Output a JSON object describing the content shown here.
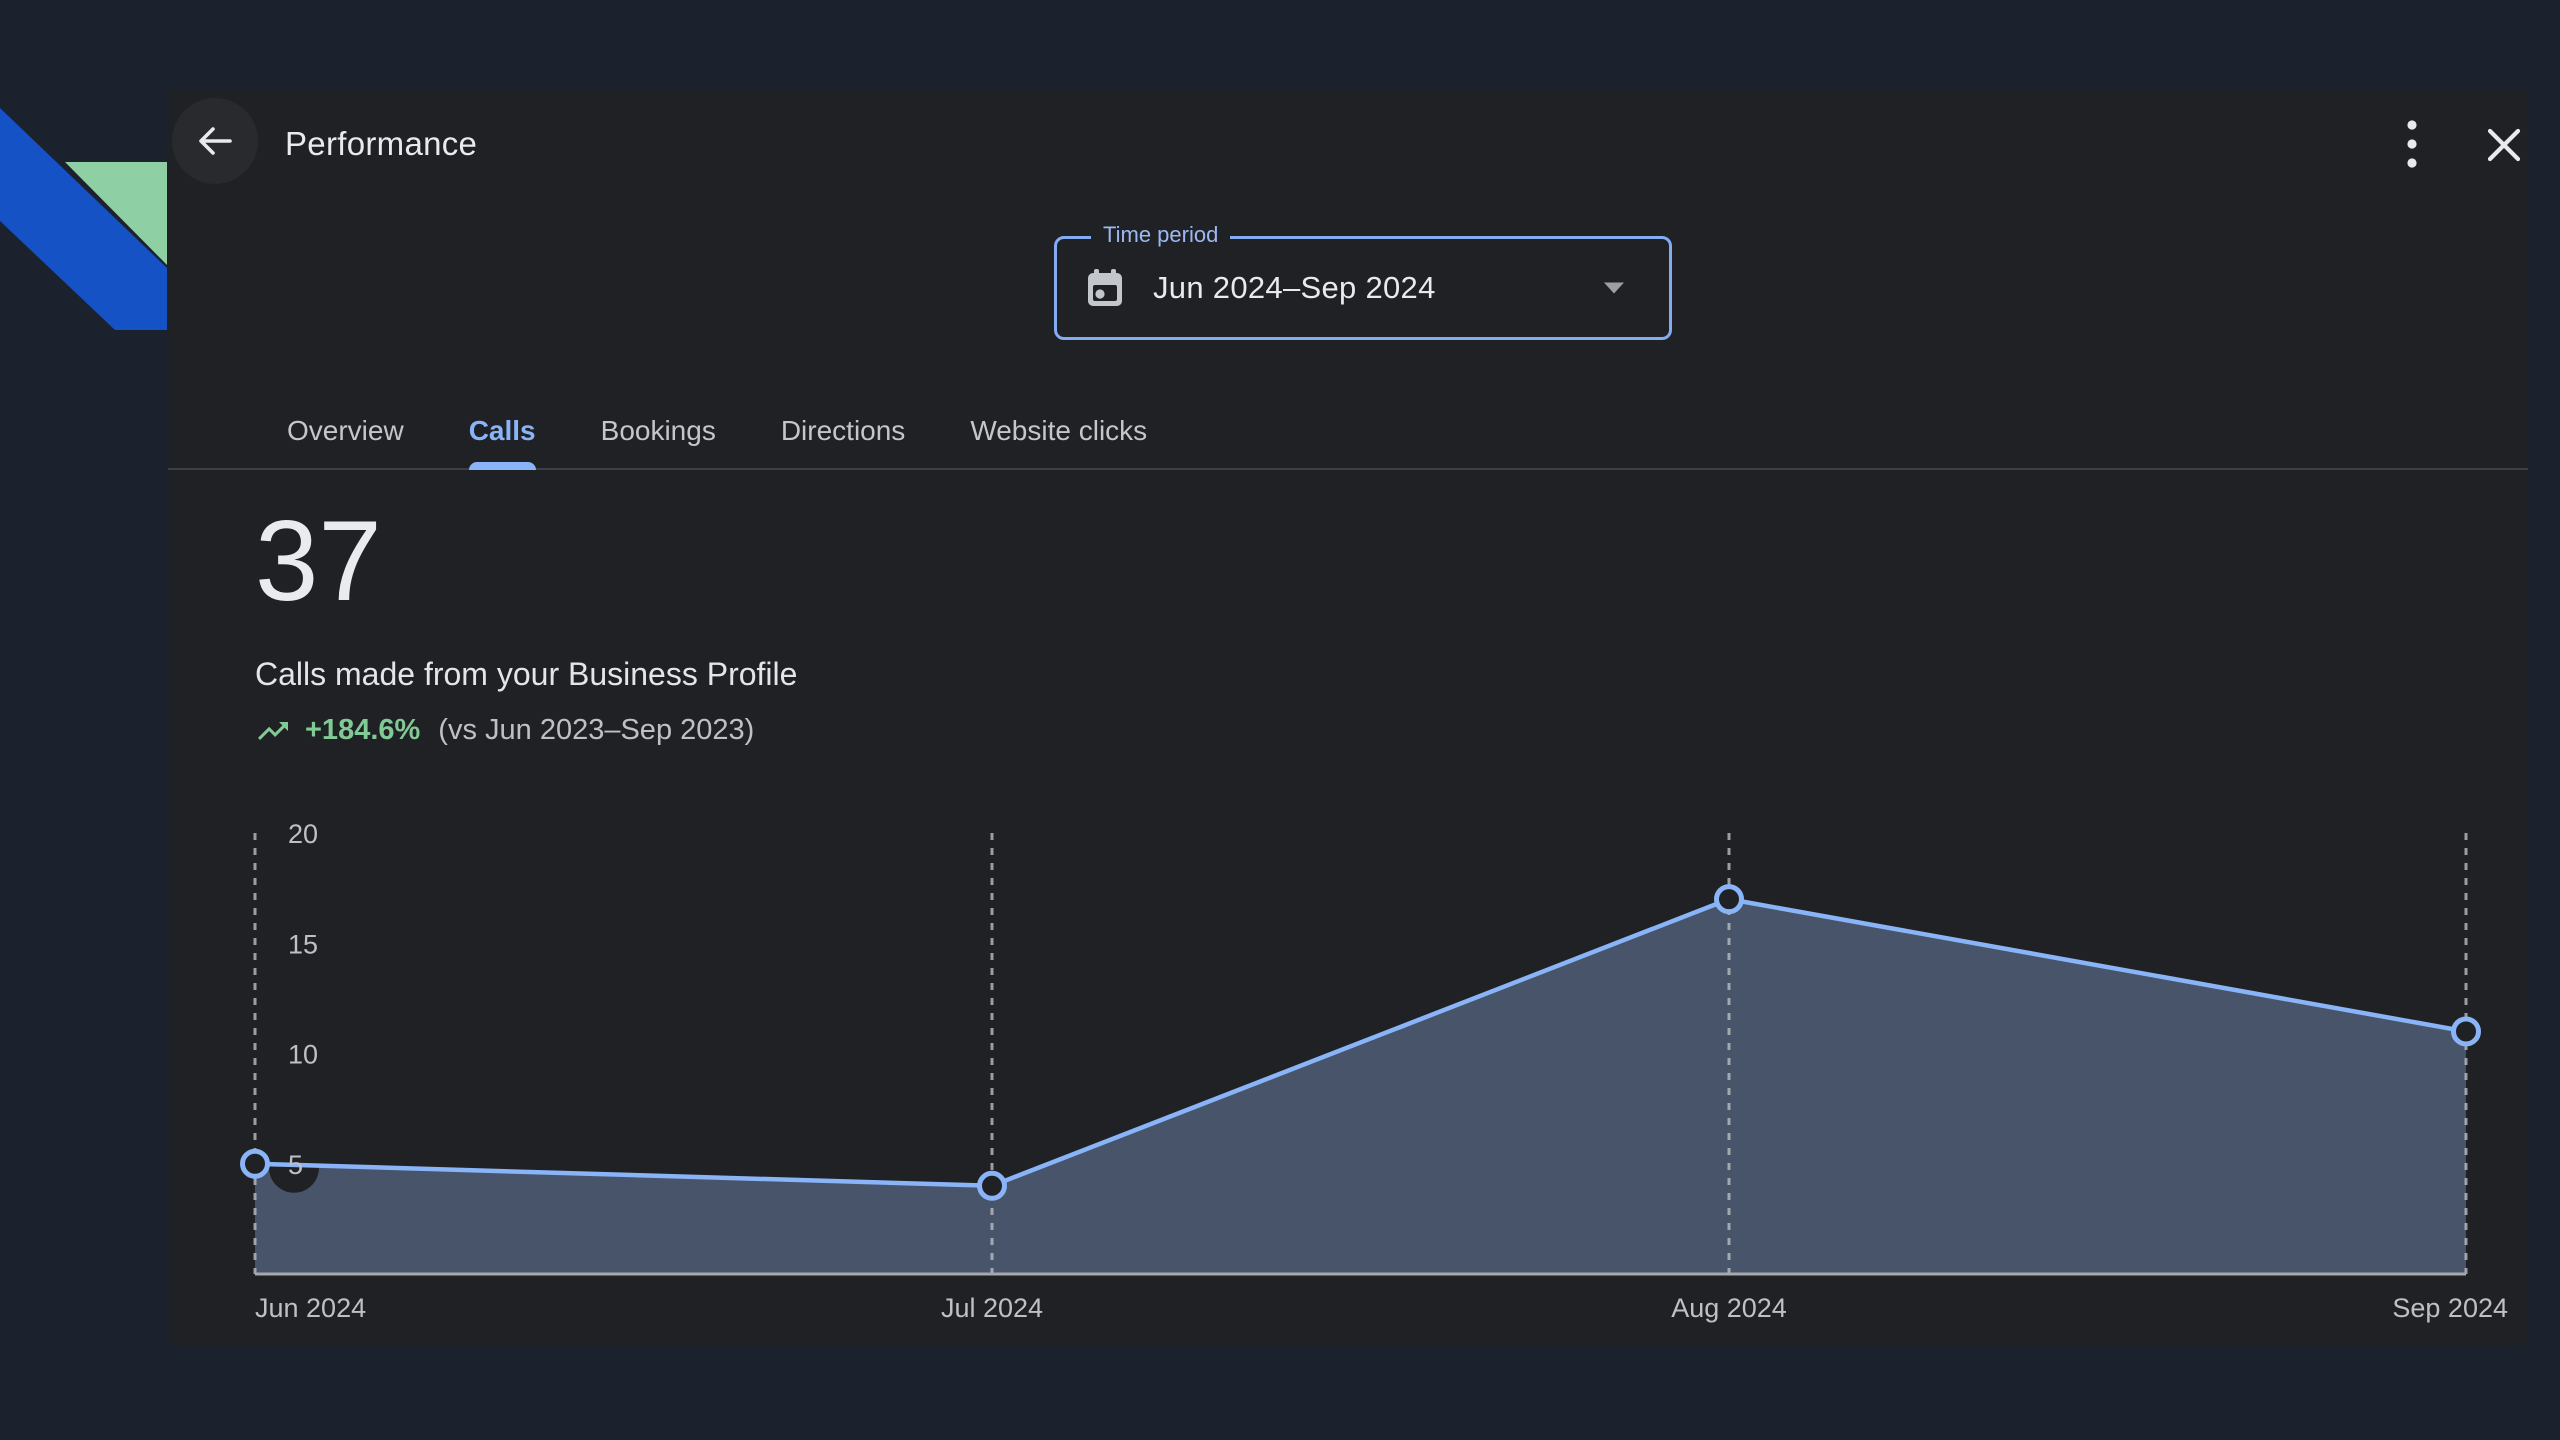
{
  "colors": {
    "page_bg": "#1c212e",
    "panel_bg": "#202124",
    "accent_blue": "#8ab4f8",
    "positive_green": "#81c995",
    "ribbon_blue": "#1552c5",
    "ribbon_green": "#8ecfa4",
    "text_primary": "#e8eaed",
    "text_secondary": "#bdc1c6"
  },
  "header": {
    "title": "Performance"
  },
  "time_period": {
    "label": "Time period",
    "value": "Jun 2024–Sep 2024"
  },
  "tabs": [
    {
      "label": "Overview",
      "active": false
    },
    {
      "label": "Calls",
      "active": true
    },
    {
      "label": "Bookings",
      "active": false
    },
    {
      "label": "Directions",
      "active": false
    },
    {
      "label": "Website clicks",
      "active": false
    }
  ],
  "metric": {
    "value": "37",
    "description": "Calls made from your Business Profile",
    "change": "+184.6%",
    "comparison": "(vs Jun 2023–Sep 2023)"
  },
  "chart_data": {
    "type": "area",
    "categories": [
      "Jun 2024",
      "Jul 2024",
      "Aug 2024",
      "Sep 2024"
    ],
    "values": [
      5,
      4,
      17,
      11
    ],
    "title": "Calls made from your Business Profile",
    "xlabel": "",
    "ylabel": "",
    "ylim": [
      0,
      20
    ],
    "yticks": [
      5,
      10,
      15,
      20
    ],
    "grid": "vertical-dashed",
    "legend": "none",
    "line_color": "#8ab4f8",
    "fill_color": "#475469",
    "grid_color": "#b9bdc2",
    "baseline_color": "#a5a9ae",
    "tick_label_color": "#bdc1c6",
    "marker": "hollow-circle"
  }
}
